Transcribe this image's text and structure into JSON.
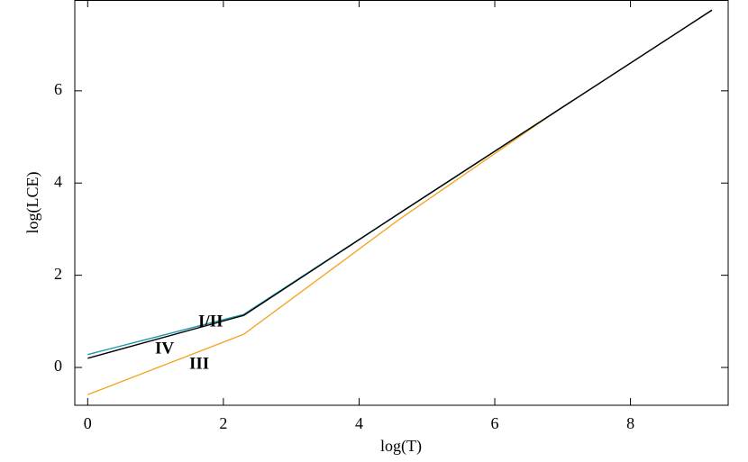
{
  "chart_data": {
    "type": "line",
    "x_label": "log(T)",
    "y_label": "log(LCE)",
    "x": [
      0,
      2.3,
      4.6,
      6.9,
      9.2
    ],
    "series": [
      {
        "name": "III",
        "color": "#f5a623",
        "values": [
          -0.59,
          0.72,
          3.22,
          5.55,
          7.75
        ]
      },
      {
        "name": "I/II",
        "color": "#1f9aa8",
        "values": [
          0.28,
          1.15,
          3.35,
          5.55,
          7.75
        ]
      },
      {
        "name": "IV",
        "color": "#000000",
        "values": [
          0.2,
          1.13,
          3.35,
          5.55,
          7.75
        ]
      }
    ],
    "xlim": [
      -0.19,
      9.44
    ],
    "ylim": [
      -0.82,
      7.97
    ],
    "xticks": [
      0,
      2,
      4,
      6,
      8
    ],
    "yticks": [
      0,
      2,
      4,
      6
    ]
  }
}
